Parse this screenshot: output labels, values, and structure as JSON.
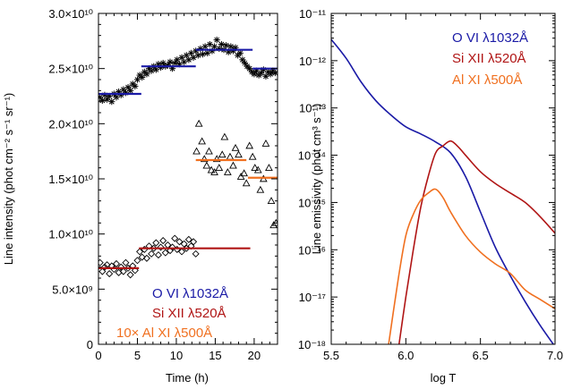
{
  "chart_data": [
    {
      "type": "scatter",
      "xlabel": "Time (h)",
      "ylabel": "Line intensity (phot cm⁻² s⁻¹ sr⁻¹)",
      "xlim": [
        0,
        23
      ],
      "ylim": [
        0,
        30000000000.0
      ],
      "x_ticks": [
        "0",
        "5",
        "10",
        "15",
        "20"
      ],
      "y_ticks": [
        "0",
        "5.0×10⁹",
        "1.0×10¹⁰",
        "1.5×10¹⁰",
        "2.0×10¹⁰",
        "2.5×10¹⁰",
        "3.0×10¹⁰"
      ],
      "legend": [
        {
          "label": "O VI  λ1032Å",
          "color": "#1a1aa6"
        },
        {
          "label": "Si XII  λ520Å",
          "color": "#b01515"
        },
        {
          "label": "10× Al XI  λ500Å",
          "color": "#f07020"
        }
      ],
      "legend_position": "bottom-left",
      "series": [
        {
          "marker": "asterisk",
          "color": "#000000",
          "x": [
            0.2,
            0.5,
            0.8,
            1.1,
            1.4,
            1.7,
            2.0,
            2.3,
            2.6,
            2.9,
            3.2,
            3.5,
            3.8,
            4.1,
            4.4,
            4.7,
            5.0,
            5.3,
            5.6,
            5.9,
            6.2,
            6.5,
            6.8,
            7.1,
            7.4,
            7.7,
            8.0,
            8.3,
            8.6,
            8.9,
            9.2,
            9.5,
            9.8,
            10.1,
            10.4,
            10.7,
            11.0,
            11.3,
            11.6,
            11.9,
            12.2,
            12.5,
            12.8,
            13.1,
            13.4,
            13.7,
            14.0,
            14.3,
            14.6,
            14.9,
            15.2,
            15.5,
            15.8,
            16.1,
            16.4,
            16.7,
            17.0,
            17.3,
            17.6,
            17.9,
            18.2,
            18.5,
            18.8,
            19.1,
            19.4,
            19.7,
            20.0,
            20.3,
            20.6,
            20.9,
            21.2,
            21.5,
            21.8,
            22.1,
            22.4,
            22.7
          ],
          "y": [
            22400000000.0,
            22100000000.0,
            22600000000.0,
            22200000000.0,
            22500000000.0,
            22000000000.0,
            22700000000.0,
            22400000000.0,
            22900000000.0,
            22600000000.0,
            23100000000.0,
            22800000000.0,
            23300000000.0,
            23000000000.0,
            23600000000.0,
            23400000000.0,
            24000000000.0,
            24400000000.0,
            24200000000.0,
            24700000000.0,
            24500000000.0,
            25000000000.0,
            24800000000.0,
            25200000000.0,
            24900000000.0,
            25400000000.0,
            25100000000.0,
            25500000000.0,
            25200000000.0,
            25300000000.0,
            25600000000.0,
            25000000000.0,
            25500000000.0,
            25800000000.0,
            25400000000.0,
            26000000000.0,
            25600000000.0,
            26200000000.0,
            25800000000.0,
            26400000000.0,
            26000000000.0,
            26600000000.0,
            26200000000.0,
            26800000000.0,
            26300000000.0,
            27000000000.0,
            26400000000.0,
            27200000000.0,
            26600000000.0,
            27000000000.0,
            27600000000.0,
            26800000000.0,
            27200000000.0,
            26700000000.0,
            27100000000.0,
            26500000000.0,
            27000000000.0,
            26600000000.0,
            26900000000.0,
            26200000000.0,
            26400000000.0,
            25800000000.0,
            25500000000.0,
            25200000000.0,
            25000000000.0,
            24700000000.0,
            24500000000.0,
            24800000000.0,
            24400000000.0,
            24600000000.0,
            24900000000.0,
            24300000000.0,
            24700000000.0,
            24500000000.0,
            24800000000.0,
            24600000000.0
          ]
        },
        {
          "marker": "triangle",
          "color": "#000000",
          "x": [
            12.6,
            12.9,
            13.3,
            13.6,
            13.9,
            14.2,
            14.5,
            14.9,
            15.2,
            15.5,
            15.9,
            16.2,
            16.6,
            16.9,
            17.3,
            17.6,
            18.0,
            18.3,
            18.7,
            19.0,
            19.4,
            19.8,
            20.1,
            20.5,
            20.8,
            21.2,
            21.5,
            21.9,
            22.2,
            22.5,
            22.8
          ],
          "y": [
            17500000000.0,
            20000000000.0,
            18400000000.0,
            16800000000.0,
            16200000000.0,
            17500000000.0,
            15800000000.0,
            15600000000.0,
            16800000000.0,
            16000000000.0,
            17200000000.0,
            18800000000.0,
            15600000000.0,
            17000000000.0,
            16200000000.0,
            17800000000.0,
            17200000000.0,
            15200000000.0,
            15500000000.0,
            14600000000.0,
            18000000000.0,
            17000000000.0,
            16000000000.0,
            15800000000.0,
            14000000000.0,
            15000000000.0,
            18200000000.0,
            16000000000.0,
            13000000000.0,
            10800000000.0,
            11000000000.0
          ]
        },
        {
          "marker": "diamond",
          "color": "#000000",
          "x": [
            0.2,
            0.5,
            0.8,
            1.1,
            1.4,
            1.7,
            2.0,
            2.3,
            2.6,
            2.9,
            3.2,
            3.5,
            3.8,
            4.1,
            4.4,
            4.7,
            5.0,
            5.3,
            5.6,
            5.9,
            6.2,
            6.5,
            6.8,
            7.1,
            7.4,
            7.7,
            8.0,
            8.3,
            8.6,
            8.9,
            9.2,
            9.5,
            9.8,
            10.1,
            10.4,
            10.7,
            11.0,
            11.3,
            11.6,
            11.9,
            12.2,
            12.5
          ],
          "y": [
            7400000000.0,
            6600000000.0,
            7000000000.0,
            7200000000.0,
            6400000000.0,
            7100000000.0,
            6800000000.0,
            7300000000.0,
            6500000000.0,
            7000000000.0,
            6600000000.0,
            7400000000.0,
            6900000000.0,
            6300000000.0,
            7100000000.0,
            6700000000.0,
            7600000000.0,
            8400000000.0,
            7900000000.0,
            8600000000.0,
            7800000000.0,
            8900000000.0,
            8200000000.0,
            8700000000.0,
            9200000000.0,
            8100000000.0,
            8800000000.0,
            9400000000.0,
            8300000000.0,
            9000000000.0,
            8500000000.0,
            8800000000.0,
            9600000000.0,
            8600000000.0,
            9300000000.0,
            8400000000.0,
            9100000000.0,
            8700000000.0,
            9500000000.0,
            8900000000.0,
            9300000000.0,
            8200000000.0
          ]
        },
        {
          "name": "O VI segments",
          "color": "#1a1aa6",
          "segments": [
            [
              0,
              5.5,
              22700000000.0
            ],
            [
              5.5,
              12.5,
              25200000000.0
            ],
            [
              12.5,
              19.8,
              26700000000.0
            ],
            [
              19.8,
              23,
              25000000000.0
            ]
          ]
        },
        {
          "name": "Si XII segments",
          "color": "#b01515",
          "segments": [
            [
              0,
              5.2,
              6900000000.0
            ],
            [
              5.2,
              19.5,
              8700000000.0
            ]
          ]
        },
        {
          "name": "Al XI segments",
          "color": "#f07020",
          "segments": [
            [
              12.5,
              19.0,
              16700000000.0
            ],
            [
              19.2,
              23,
              15100000000.0
            ]
          ]
        }
      ]
    },
    {
      "type": "line",
      "xlabel": "log T",
      "ylabel": "Line emissivity (phot cm³ s⁻¹)",
      "xlim": [
        5.5,
        7.0
      ],
      "ylim": [
        -18,
        -11
      ],
      "yscale": "log",
      "x_ticks": [
        "5.5",
        "6.0",
        "6.5",
        "7.0"
      ],
      "y_ticks": [
        "10⁻¹⁸",
        "10⁻¹⁷",
        "10⁻¹⁶",
        "10⁻¹⁵",
        "10⁻¹⁴",
        "10⁻¹³",
        "10⁻¹²",
        "10⁻¹¹"
      ],
      "legend": [
        {
          "label": "O VI  λ1032Å",
          "color": "#1a1aa6"
        },
        {
          "label": "Si XII  λ520Å",
          "color": "#b01515"
        },
        {
          "label": "Al XI  λ500Å",
          "color": "#f07020"
        }
      ],
      "legend_position": "top-right",
      "series": [
        {
          "label": "O VI  λ1032Å",
          "color": "#1a1aa6",
          "x": [
            5.5,
            5.6,
            5.7,
            5.8,
            5.9,
            6.0,
            6.1,
            6.2,
            6.3,
            6.4,
            6.5,
            6.6,
            6.7,
            6.8,
            6.9,
            7.0
          ],
          "y": [
            -11.55,
            -11.95,
            -12.45,
            -12.85,
            -13.15,
            -13.4,
            -13.55,
            -13.72,
            -13.95,
            -14.45,
            -15.2,
            -15.95,
            -16.55,
            -17.1,
            -17.6,
            -18.05
          ]
        },
        {
          "label": "Si XII  λ520Å",
          "color": "#b01515",
          "x": [
            5.95,
            6.0,
            6.05,
            6.1,
            6.15,
            6.2,
            6.25,
            6.3,
            6.35,
            6.4,
            6.5,
            6.6,
            6.7,
            6.8,
            6.9,
            7.0
          ],
          "y": [
            -18.1,
            -17.0,
            -16.0,
            -15.1,
            -14.45,
            -13.95,
            -13.8,
            -13.7,
            -13.82,
            -14.0,
            -14.35,
            -14.6,
            -14.8,
            -15.0,
            -15.3,
            -15.65
          ]
        },
        {
          "label": "Al XI  λ500Å",
          "color": "#f07020",
          "x": [
            5.88,
            5.95,
            6.0,
            6.05,
            6.1,
            6.15,
            6.2,
            6.25,
            6.3,
            6.4,
            6.5,
            6.6,
            6.7,
            6.8,
            6.9,
            7.0
          ],
          "y": [
            -18.1,
            -16.6,
            -15.7,
            -15.25,
            -14.95,
            -14.8,
            -14.72,
            -14.9,
            -15.2,
            -15.7,
            -16.05,
            -16.3,
            -16.5,
            -16.85,
            -17.05,
            -17.25
          ]
        }
      ]
    }
  ]
}
